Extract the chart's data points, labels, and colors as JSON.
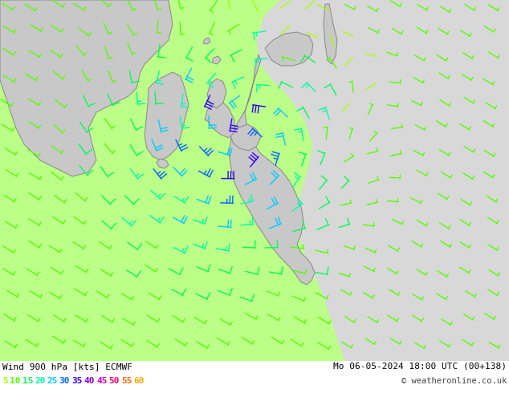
{
  "title_left": "Wind 900 hPa [kts] ECMWF",
  "title_right": "Mo 06-05-2024 18:00 UTC (00+138)",
  "copyright": "© weatheronline.co.uk",
  "legend_labels": [
    "5",
    "10",
    "15",
    "20",
    "25",
    "30",
    "35",
    "40",
    "45",
    "50",
    "55",
    "60"
  ],
  "legend_colors": [
    "#aaff00",
    "#55ff00",
    "#00ff55",
    "#00ffaa",
    "#00ccff",
    "#0066ff",
    "#3300ff",
    "#8800cc",
    "#cc00cc",
    "#ff0066",
    "#ff6600",
    "#ffaa00"
  ],
  "bg_ocean_west": "#bbff88",
  "bg_ocean_east": "#d8d8d8",
  "land_color": "#c8c8c8",
  "coast_color": "#888888",
  "fig_bg": "#ffffff"
}
